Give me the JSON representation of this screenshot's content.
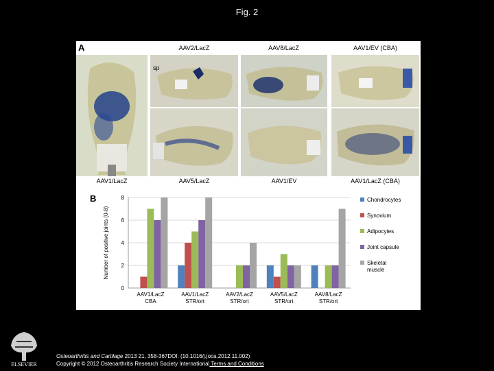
{
  "figure_title": "Fig. 2",
  "panel_a": {
    "letter": "A",
    "top_labels": [
      "AAV2/LacZ",
      "AAV8/LacZ",
      "AAV1/EV (CBA)"
    ],
    "bottom_labels": [
      "AAV1/LacZ",
      "AAV5/LacZ",
      "AAV1/EV",
      "AAV1/LacZ (CBA)"
    ],
    "sp_label": "sp"
  },
  "panel_b": {
    "letter": "B"
  },
  "chart_data": {
    "type": "bar",
    "ylabel": "Number of positive joints (0-8)",
    "ylim": [
      0,
      8
    ],
    "yticks": [
      "0",
      "2",
      "4",
      "6",
      "8"
    ],
    "categories": [
      [
        "AAV1/LacZ",
        "CBA"
      ],
      [
        "AAV1/LacZ",
        "STR/ort"
      ],
      [
        "AAV2/LacZ",
        "STR/ort"
      ],
      [
        "AAV5/LacZ",
        "STR/ort"
      ],
      [
        "AAV8/LacZ",
        "STR/ort"
      ]
    ],
    "series": [
      {
        "name": "Chondrocytes",
        "color": "#4f81bd",
        "values": [
          0,
          2,
          0,
          2,
          2
        ]
      },
      {
        "name": "Synovium",
        "color": "#c0504d",
        "values": [
          1,
          4,
          0,
          1,
          0
        ]
      },
      {
        "name": "Adipocytes",
        "color": "#9bbb59",
        "values": [
          7,
          5,
          2,
          3,
          2
        ]
      },
      {
        "name": "Joint capsule",
        "color": "#8064a2",
        "values": [
          6,
          6,
          2,
          2,
          2
        ]
      },
      {
        "name": "Skeletal muscle",
        "color": "#a5a5a5",
        "values": [
          8,
          8,
          4,
          2,
          7
        ]
      }
    ]
  },
  "footer": {
    "journal": "Osteoarthritis and Cartilage",
    "citation": " 2013 21, 358-367DOI: (10.1016/j.joca.2012.11.002)",
    "copyright": "Copyright © 2012 Osteoarthritis Research Society International",
    "terms_link": " Terms and Conditions"
  },
  "logo": {
    "text": "ELSEVIER"
  },
  "colors": {
    "background": "#000000",
    "panel": "#ffffff"
  }
}
